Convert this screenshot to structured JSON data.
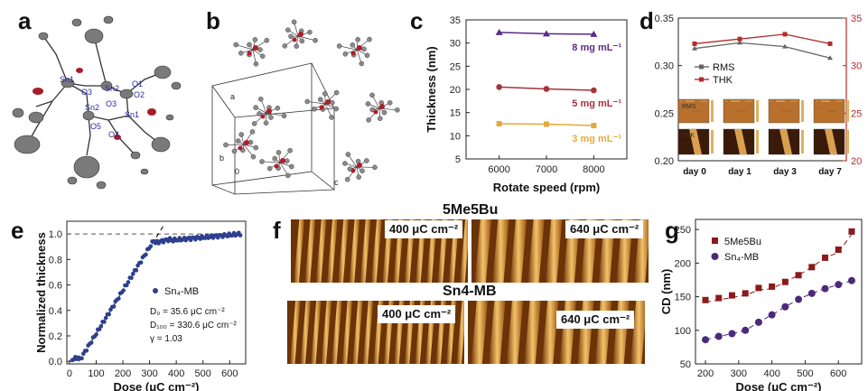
{
  "panel_labels": {
    "a": "a",
    "b": "b",
    "c": "c",
    "d": "d",
    "e": "e",
    "f": "f",
    "g": "g"
  },
  "molecule_atoms": {
    "sn1_left": "Sn1",
    "sn1_right": "Sn1",
    "sn2_top": "Sn2",
    "sn2_bottom": "Sn2",
    "o1": "O1",
    "o2": "O2",
    "o3": "O3",
    "o4": "O4",
    "o5": "O5",
    "o3b": "O3"
  },
  "cell_labels": {
    "a": "a",
    "b": "b",
    "c": "c",
    "o": "0"
  },
  "colors": {
    "purple": "#5b2a86",
    "red_c": "#a8313a",
    "gold": "#e7a93a",
    "gray_rms": "#666666",
    "red_thk": "#b52a2a",
    "navy": "#2e3f8f",
    "maroon": "#8b1a1a",
    "violet": "#4b2a7b"
  },
  "chart_data": [
    {
      "id": "c",
      "type": "line",
      "xlabel": "Rotate speed (rpm)",
      "ylabel": "Thickness (nm)",
      "x": [
        6000,
        7000,
        8000
      ],
      "xlim": [
        5300,
        8700
      ],
      "ylim": [
        5,
        35
      ],
      "xticks": [
        6000,
        7000,
        8000
      ],
      "yticks": [
        5,
        10,
        15,
        20,
        25,
        30,
        35
      ],
      "series": [
        {
          "name": "8 mg mL⁻¹",
          "values": [
            32.3,
            32.0,
            31.9
          ],
          "color": "#5b2a86"
        },
        {
          "name": "5 mg mL⁻¹",
          "values": [
            20.5,
            20.1,
            19.8
          ],
          "color": "#a8313a"
        },
        {
          "name": "3 mg mL⁻¹",
          "values": [
            12.6,
            12.5,
            12.2
          ],
          "color": "#e7a93a"
        }
      ]
    },
    {
      "id": "d",
      "type": "line",
      "categories": [
        "day 0",
        "day 1",
        "day 3",
        "day 7"
      ],
      "y_left": {
        "ylim": [
          0.2,
          0.35
        ],
        "ticks": [
          "0.20",
          "0.25",
          "0.30",
          "0.35"
        ]
      },
      "y_right": {
        "ylim": [
          20,
          35
        ],
        "ticks": [
          "20",
          "25",
          "30",
          "35"
        ]
      },
      "series": [
        {
          "name": "RMS",
          "axis": "left",
          "values": [
            0.318,
            0.324,
            0.32,
            0.308
          ],
          "color": "#666666"
        },
        {
          "name": "THK",
          "axis": "right",
          "values": [
            32.3,
            32.8,
            33.3,
            32.3
          ],
          "color": "#b52a2a"
        }
      ],
      "inset_labels": {
        "rms": "RMS",
        "thk": "THK"
      }
    },
    {
      "id": "e",
      "type": "scatter",
      "xlabel": "Dose (μC cm⁻²)",
      "ylabel": "Normalized thickness",
      "xlim": [
        -10,
        660
      ],
      "ylim": [
        -0.02,
        1.1
      ],
      "xticks": [
        0,
        100,
        200,
        300,
        400,
        500,
        600
      ],
      "yticks": [
        "0.0",
        "0.2",
        "0.4",
        "0.6",
        "0.8",
        "1.0"
      ],
      "series": [
        {
          "name": "Sn₄-MB",
          "color": "#2e3f8f"
        }
      ],
      "fit_line": {
        "x": [
          35.6,
          330.6
        ],
        "y": [
          0,
          1.0
        ]
      },
      "plateau": 1.0,
      "annotations": [
        "D₀ = 35.6 μC cm⁻²",
        "D₁₀₀ = 330.6 μC cm⁻²",
        "γ = 1.03"
      ]
    },
    {
      "id": "g",
      "type": "scatter",
      "xlabel": "Dose (μC cm⁻²)",
      "ylabel": "CD (nm)",
      "xlim": [
        170,
        670
      ],
      "ylim": [
        50,
        265
      ],
      "xticks": [
        200,
        300,
        400,
        500,
        600
      ],
      "yticks": [
        50,
        100,
        150,
        200,
        250
      ],
      "series": [
        {
          "name": "5Me5Bu",
          "x": [
            200,
            240,
            280,
            320,
            360,
            400,
            440,
            480,
            520,
            560,
            600,
            640
          ],
          "values": [
            145,
            148,
            152,
            155,
            163,
            165,
            172,
            182,
            194,
            208,
            220,
            247
          ],
          "color": "#8b1a1a"
        },
        {
          "name": "Sn₄-MB",
          "x": [
            200,
            240,
            280,
            320,
            360,
            400,
            440,
            480,
            520,
            560,
            600,
            640
          ],
          "values": [
            86,
            91,
            95,
            100,
            112,
            123,
            135,
            146,
            155,
            162,
            168,
            174
          ],
          "color": "#4b2a7b"
        }
      ]
    }
  ],
  "panel_f": {
    "title_top": "5Me5Bu",
    "title_bottom": "Sn4-MB",
    "dose_400_top": "400 μC cm⁻²",
    "dose_640_top": "640 μC cm⁻²",
    "dose_400_bottom": "400 μC cm⁻²",
    "dose_640_bottom": "640 μC cm⁻²"
  }
}
